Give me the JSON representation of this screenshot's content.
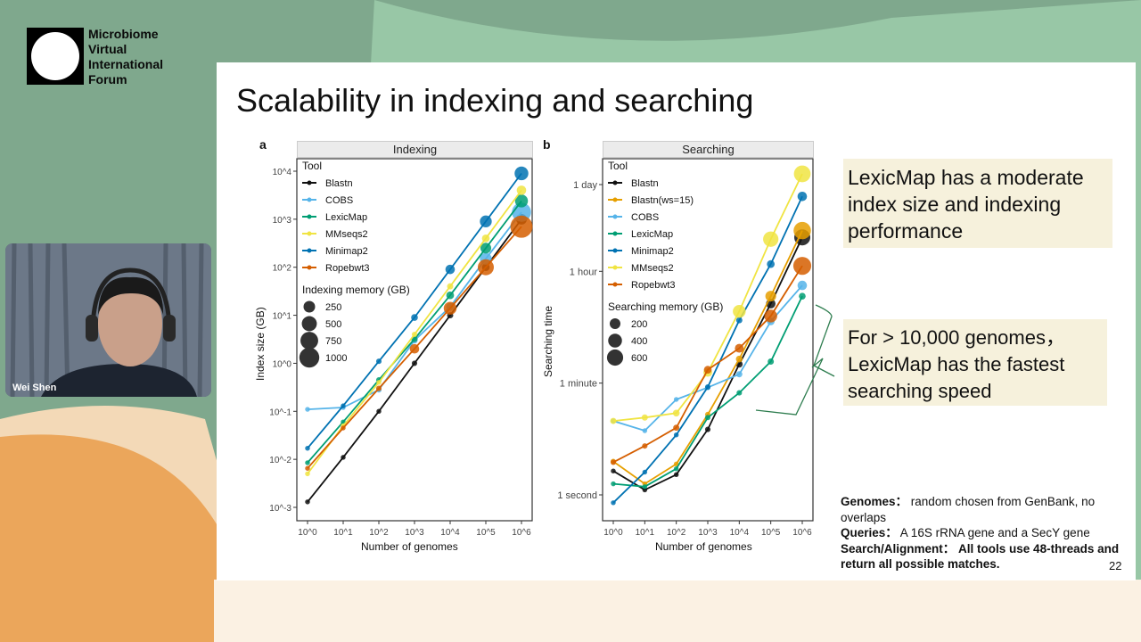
{
  "brand": {
    "logo_lines": [
      "Microbiome",
      "Virtual",
      "International",
      "Forum"
    ]
  },
  "slide": {
    "title": "Scalability in indexing and searching",
    "page_number": "22",
    "callout1": "LexicMap has a moderate index size and indexing performance",
    "callout2": "For > 10,000 genomes，LexicMap has the fastest searching speed",
    "notes": [
      {
        "label": "Genomes",
        "text": "random chosen from GenBank, no overlaps"
      },
      {
        "label": "Queries",
        "text": "A 16S rRNA gene and a SecY gene"
      },
      {
        "label": "Search/Alignment",
        "text": "All tools use 48-threads and return all possible matches."
      }
    ]
  },
  "video": {
    "participant_name": "Wei Shen"
  },
  "colors": {
    "Blastn": "#111111",
    "Blastn(ws=15)": "#e69f00",
    "COBS": "#56b4e9",
    "LexicMap": "#009e73",
    "MMseqs2": "#f0e442",
    "Minimap2": "#0072b2",
    "Ropebwt3": "#d55e00"
  },
  "chart_data": [
    {
      "type": "line",
      "panel": "a",
      "strip": "Indexing",
      "xlabel": "Number of genomes",
      "ylabel": "Index size (GB)",
      "log_x": true,
      "log_y": true,
      "x": [
        1,
        10,
        100,
        1000,
        10000,
        100000,
        1000000
      ],
      "x_ticks": [
        "10^0",
        "10^1",
        "10^2",
        "10^3",
        "10^4",
        "10^5",
        "10^6"
      ],
      "y_ticks": [
        {
          "v": 0.001,
          "l": "10^-3"
        },
        {
          "v": 0.01,
          "l": "10^-2"
        },
        {
          "v": 0.1,
          "l": "10^-1"
        },
        {
          "v": 1,
          "l": "10^0"
        },
        {
          "v": 10,
          "l": "10^1"
        },
        {
          "v": 100,
          "l": "10^2"
        },
        {
          "v": 1000,
          "l": "10^3"
        },
        {
          "v": 10000,
          "l": "10^4"
        }
      ],
      "ylim": [
        0.0006,
        20000
      ],
      "legend_title": "Tool",
      "size_legend_title": "Indexing memory (GB)",
      "size_legend": [
        250,
        500,
        750,
        1000
      ],
      "legend_placement": "top-left",
      "series": [
        {
          "name": "Blastn",
          "values": [
            0.0013,
            0.011,
            0.1,
            1,
            10,
            100,
            1000
          ],
          "memory_gb": [
            5,
            5,
            5,
            10,
            20,
            50,
            150
          ]
        },
        {
          "name": "COBS",
          "values": [
            0.11,
            0.12,
            0.28,
            3,
            15,
            150,
            1400
          ],
          "memory_gb": [
            5,
            5,
            10,
            20,
            50,
            200,
            700
          ]
        },
        {
          "name": "LexicMap",
          "values": [
            0.0085,
            0.06,
            0.45,
            3.2,
            26,
            250,
            2400
          ],
          "memory_gb": [
            5,
            5,
            10,
            20,
            50,
            150,
            250
          ]
        },
        {
          "name": "MMseqs2",
          "values": [
            0.005,
            0.05,
            0.4,
            4,
            40,
            400,
            4000
          ],
          "memory_gb": [
            5,
            5,
            5,
            10,
            20,
            50,
            100
          ]
        },
        {
          "name": "Minimap2",
          "values": [
            0.017,
            0.13,
            1.1,
            9,
            90,
            900,
            9000
          ],
          "memory_gb": [
            5,
            5,
            10,
            30,
            100,
            200,
            300
          ]
        },
        {
          "name": "Ropebwt3",
          "values": [
            0.0065,
            0.045,
            0.3,
            2,
            14,
            100,
            700
          ],
          "memory_gb": [
            5,
            5,
            10,
            100,
            250,
            450,
            1000
          ]
        }
      ]
    },
    {
      "type": "line",
      "panel": "b",
      "strip": "Searching",
      "xlabel": "Number of genomes",
      "ylabel": "Searching time",
      "log_x": true,
      "log_y": true,
      "y_unit": "seconds",
      "x": [
        1,
        10,
        100,
        1000,
        10000,
        100000,
        1000000
      ],
      "x_ticks": [
        "10^0",
        "10^1",
        "10^2",
        "10^3",
        "10^4",
        "10^5",
        "10^6"
      ],
      "y_ticks": [
        {
          "v": 1,
          "l": "1 second"
        },
        {
          "v": 60,
          "l": "1 minute"
        },
        {
          "v": 3600,
          "l": "1 hour"
        },
        {
          "v": 86400,
          "l": "1 day"
        }
      ],
      "ylim": [
        0.5,
        200000
      ],
      "legend_title": "Tool",
      "size_legend_title": "Searching memory (GB)",
      "size_legend": [
        200,
        400,
        600
      ],
      "legend_placement": "top-left",
      "series": [
        {
          "name": "Blastn",
          "values": [
            2.4,
            1.2,
            2.1,
            11,
            120,
            1100,
            12500
          ],
          "memory_gb": [
            5,
            5,
            5,
            10,
            30,
            100,
            450
          ]
        },
        {
          "name": "Blastn(ws=15)",
          "values": [
            3.4,
            1.5,
            3.1,
            19,
            145,
            1450,
            16000
          ],
          "memory_gb": [
            10,
            5,
            5,
            10,
            30,
            150,
            550
          ]
        },
        {
          "name": "COBS",
          "values": [
            15,
            10.5,
            33,
            51,
            83,
            575,
            2150
          ],
          "memory_gb": [
            5,
            5,
            5,
            10,
            20,
            50,
            100
          ]
        },
        {
          "name": "LexicMap",
          "values": [
            1.5,
            1.35,
            2.6,
            17,
            42,
            132,
            1450
          ],
          "memory_gb": [
            5,
            5,
            5,
            10,
            10,
            20,
            30
          ]
        },
        {
          "name": "Minimap2",
          "values": [
            0.75,
            2.3,
            9,
            52,
            600,
            4700,
            56000
          ],
          "memory_gb": [
            5,
            5,
            5,
            10,
            20,
            50,
            100
          ]
        },
        {
          "name": "MMseqs2",
          "values": [
            15,
            17,
            20,
            89,
            830,
            11700,
            128000
          ],
          "memory_gb": [
            20,
            20,
            30,
            80,
            250,
            400,
            500
          ]
        },
        {
          "name": "Ropebwt3",
          "values": [
            3.3,
            6,
            11.7,
            98,
            215,
            700,
            4400
          ],
          "memory_gb": [
            10,
            10,
            20,
            50,
            80,
            250,
            600
          ]
        }
      ]
    }
  ]
}
